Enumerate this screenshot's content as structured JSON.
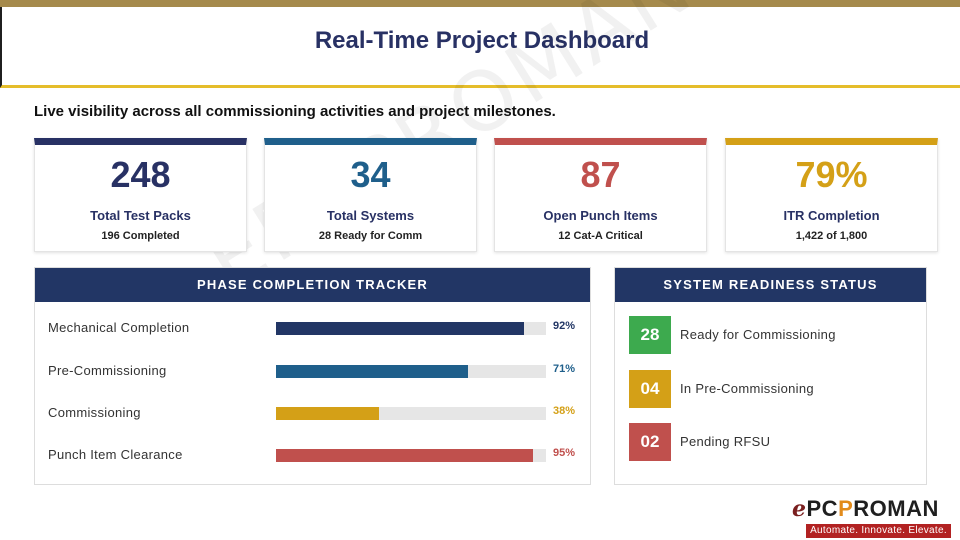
{
  "title": "Real-Time Project Dashboard",
  "subtitle": "Live visibility across all commissioning activities and project milestones.",
  "watermark": "EPCPROMAN",
  "kpis": [
    {
      "value": "248",
      "label": "Total Test Packs",
      "sub": "196 Completed",
      "color": "#283164"
    },
    {
      "value": "34",
      "label": "Total Systems",
      "sub": "28 Ready for Comm",
      "color": "#1f5f8b"
    },
    {
      "value": "87",
      "label": "Open Punch Items",
      "sub": "12 Cat-A Critical",
      "color": "#c0504d"
    },
    {
      "value": "79%",
      "label": "ITR Completion",
      "sub": "1,422 of 1,800",
      "color": "#d4a017"
    }
  ],
  "phase_tracker": {
    "title": "PHASE COMPLETION TRACKER",
    "phases": [
      {
        "label": "Mechanical Completion",
        "percent_text": "92%",
        "value": 92,
        "color": "#223665"
      },
      {
        "label": "Pre-Commissioning",
        "percent_text": "71%",
        "value": 71,
        "color": "#1f5f8b"
      },
      {
        "label": "Commissioning",
        "percent_text": "38%",
        "value": 38,
        "color": "#d4a017"
      },
      {
        "label": "Punch Item Clearance",
        "percent_text": "95%",
        "value": 95,
        "color": "#c0504d"
      }
    ]
  },
  "readiness": {
    "title": "SYSTEM READINESS STATUS",
    "items": [
      {
        "count": "28",
        "label": "Ready for Commissioning",
        "color": "#3daa4e"
      },
      {
        "count": "04",
        "label": "In Pre-Commissioning",
        "color": "#d4a017"
      },
      {
        "count": "02",
        "label": "Pending RFSU",
        "color": "#c0504d"
      }
    ]
  },
  "logo": {
    "brand": "EPCPROMAN",
    "tagline": "Automate. Innovate. Elevate."
  }
}
